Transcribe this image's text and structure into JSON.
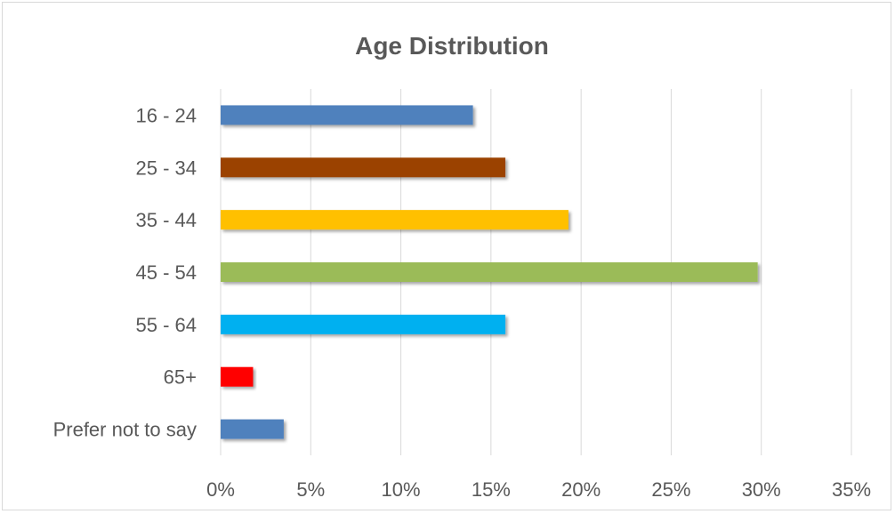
{
  "chart_data": {
    "type": "bar",
    "orientation": "horizontal",
    "title": "Age Distribution",
    "xlabel": "",
    "ylabel": "",
    "categories": [
      "16 - 24",
      "25 - 34",
      "35 - 44",
      "45 - 54",
      "55 - 64",
      "65+",
      "Prefer not to say"
    ],
    "values": [
      14,
      15.8,
      19.3,
      29.8,
      15.8,
      1.8,
      3.5
    ],
    "bar_colors": [
      "#4f81bd",
      "#9b4306",
      "#ffc000",
      "#9bbb59",
      "#00b0f0",
      "#ff0000",
      "#4f81bd"
    ],
    "xlim": [
      0,
      35
    ],
    "x_ticks": [
      0,
      5,
      10,
      15,
      20,
      25,
      30,
      35
    ],
    "x_tick_labels": [
      "0%",
      "5%",
      "10%",
      "15%",
      "20%",
      "25%",
      "30%",
      "35%"
    ],
    "grid": true,
    "legend": "none"
  }
}
